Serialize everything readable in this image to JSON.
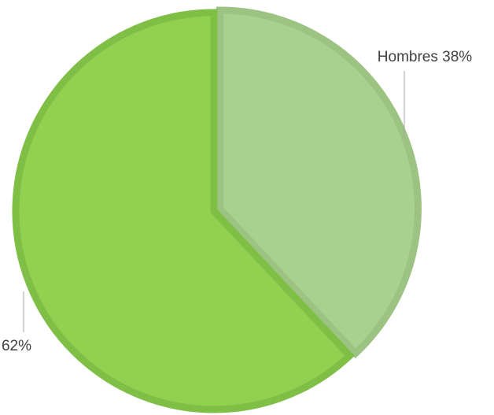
{
  "chart_data": {
    "type": "pie",
    "categories": [
      "Hombres",
      null
    ],
    "values": [
      38,
      62
    ],
    "value_labels": [
      "38%",
      "62%"
    ],
    "colors": [
      "#a9d18e",
      "#92d050"
    ],
    "stroke_colors": [
      "#9cc382",
      "#7fbf45"
    ]
  }
}
